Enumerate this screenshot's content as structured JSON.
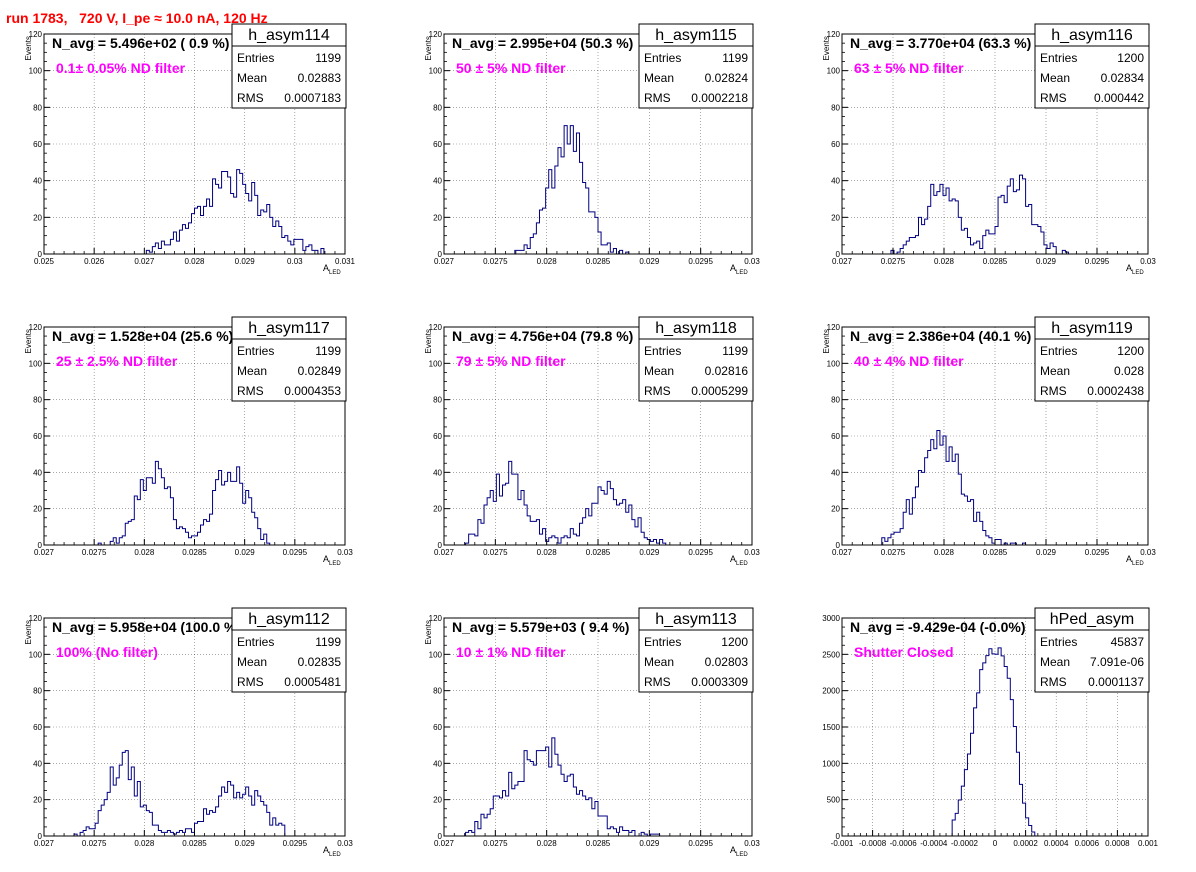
{
  "canvas_title": "run 1783,   720 V, I_pe ≈ 10.0 nA, 120 Hz",
  "colors": {
    "histogram": "#000080",
    "filter_label": "#ff00ff",
    "title": "#ff0000",
    "grid": "#000000"
  },
  "chart_data": [
    {
      "type": "histogram",
      "name": "h_asym114",
      "title": "N_avg = 5.496e+02 ( 0.9 %)",
      "annotation": "0.1± 0.05% ND filter",
      "stats": {
        "Entries": "1199",
        "Mean": "0.02883",
        "RMS": "0.0007183"
      },
      "xlabel": "A_LED",
      "ylabel": "Events",
      "xlim": [
        0.025,
        0.031
      ],
      "ylim": [
        0,
        120
      ],
      "xticks": [
        "0.025",
        "0.026",
        "0.027",
        "0.028",
        "0.029",
        "0.03",
        "0.031"
      ],
      "yticks": [
        "0",
        "20",
        "40",
        "60",
        "80",
        "100",
        "120"
      ],
      "peaks": [
        {
          "mean": 0.02875,
          "sigma": 0.00068,
          "height": 38
        }
      ],
      "x_min": 0.027,
      "x_max": 0.0306,
      "grid": true
    },
    {
      "type": "histogram",
      "name": "h_asym115",
      "title": "N_avg = 2.995e+04 (50.3 %)",
      "annotation": "50 ± 5% ND filter",
      "stats": {
        "Entries": "1199",
        "Mean": "0.02824",
        "RMS": "0.0002218"
      },
      "xlabel": "A_LED",
      "ylabel": "Events",
      "xlim": [
        0.027,
        0.03
      ],
      "ylim": [
        0,
        120
      ],
      "xticks": [
        "0.027",
        "0.0275",
        "0.028",
        "0.0285",
        "0.029",
        "0.0295",
        "0.03"
      ],
      "yticks": [
        "0",
        "20",
        "40",
        "60",
        "80",
        "100",
        "120"
      ],
      "peaks": [
        {
          "mean": 0.02821,
          "sigma": 0.00017,
          "height": 65
        }
      ],
      "x_min": 0.0277,
      "x_max": 0.0289,
      "grid": true
    },
    {
      "type": "histogram",
      "name": "h_asym116",
      "title": "N_avg = 3.770e+04 (63.3 %)",
      "annotation": "63 ± 5% ND filter",
      "stats": {
        "Entries": "1200",
        "Mean": "0.02834",
        "RMS": "0.000442"
      },
      "xlabel": "A_LED",
      "ylabel": "Events",
      "xlim": [
        0.027,
        0.03
      ],
      "ylim": [
        0,
        120
      ],
      "xticks": [
        "0.027",
        "0.0275",
        "0.028",
        "0.0285",
        "0.029",
        "0.0295",
        "0.03"
      ],
      "yticks": [
        "0",
        "20",
        "40",
        "60",
        "80",
        "100",
        "120"
      ],
      "peaks": [
        {
          "mean": 0.02797,
          "sigma": 0.00016,
          "height": 37
        },
        {
          "mean": 0.0287,
          "sigma": 0.00016,
          "height": 40
        }
      ],
      "x_min": 0.0274,
      "x_max": 0.0293,
      "grid": true
    },
    {
      "type": "histogram",
      "name": "h_asym117",
      "title": "N_avg = 1.528e+04 (25.6 %)",
      "annotation": "25 ± 2.5% ND filter",
      "stats": {
        "Entries": "1199",
        "Mean": "0.02849",
        "RMS": "0.0004353"
      },
      "xlabel": "A_LED",
      "ylabel": "Events",
      "xlim": [
        0.027,
        0.03
      ],
      "ylim": [
        0,
        120
      ],
      "xticks": [
        "0.027",
        "0.0275",
        "0.028",
        "0.0285",
        "0.029",
        "0.0295",
        "0.03"
      ],
      "yticks": [
        "0",
        "20",
        "40",
        "60",
        "80",
        "100",
        "120"
      ],
      "peaks": [
        {
          "mean": 0.02809,
          "sigma": 0.00016,
          "height": 40
        },
        {
          "mean": 0.02885,
          "sigma": 0.00017,
          "height": 41
        }
      ],
      "x_min": 0.0275,
      "x_max": 0.0293,
      "grid": true
    },
    {
      "type": "histogram",
      "name": "h_asym118",
      "title": "N_avg = 4.756e+04 (79.8 %)",
      "annotation": "79 ± 5% ND filter",
      "stats": {
        "Entries": "1199",
        "Mean": "0.02816",
        "RMS": "0.0005299"
      },
      "xlabel": "A_LED",
      "ylabel": "Events",
      "xlim": [
        0.027,
        0.03
      ],
      "ylim": [
        0,
        120
      ],
      "xticks": [
        "0.027",
        "0.0275",
        "0.028",
        "0.0285",
        "0.029",
        "0.0295",
        "0.03"
      ],
      "yticks": [
        "0",
        "20",
        "40",
        "60",
        "80",
        "100",
        "120"
      ],
      "peaks": [
        {
          "mean": 0.02763,
          "sigma": 0.00018,
          "height": 38
        },
        {
          "mean": 0.02862,
          "sigma": 0.0002,
          "height": 32
        }
      ],
      "x_min": 0.0272,
      "x_max": 0.0292,
      "grid": true
    },
    {
      "type": "histogram",
      "name": "h_asym119",
      "title": "N_avg = 2.386e+04 (40.1 %)",
      "annotation": "40 ± 4% ND filter",
      "stats": {
        "Entries": "1200",
        "Mean": "0.028",
        "RMS": "0.0002438"
      },
      "xlabel": "A_LED",
      "ylabel": "Events",
      "xlim": [
        0.027,
        0.03
      ],
      "ylim": [
        0,
        120
      ],
      "xticks": [
        "0.027",
        "0.0275",
        "0.028",
        "0.0285",
        "0.029",
        "0.0295",
        "0.03"
      ],
      "yticks": [
        "0",
        "20",
        "40",
        "60",
        "80",
        "100",
        "120"
      ],
      "peaks": [
        {
          "mean": 0.02797,
          "sigma": 0.00022,
          "height": 57
        }
      ],
      "x_min": 0.0274,
      "x_max": 0.0288,
      "grid": true
    },
    {
      "type": "histogram",
      "name": "h_asym112",
      "title": "N_avg = 5.958e+04 (100.0 %)",
      "annotation": "100% (No filter)",
      "stats": {
        "Entries": "1199",
        "Mean": "0.02835",
        "RMS": "0.0005481"
      },
      "xlabel": "A_LED",
      "ylabel": "Events",
      "xlim": [
        0.027,
        0.03
      ],
      "ylim": [
        0,
        120
      ],
      "xticks": [
        "0.027",
        "0.0275",
        "0.028",
        "0.0285",
        "0.029",
        "0.0295",
        "0.03"
      ],
      "yticks": [
        "0",
        "20",
        "40",
        "60",
        "80",
        "100",
        "120"
      ],
      "peaks": [
        {
          "mean": 0.02779,
          "sigma": 0.00016,
          "height": 40
        },
        {
          "mean": 0.02892,
          "sigma": 0.00024,
          "height": 27
        }
      ],
      "x_min": 0.0273,
      "x_max": 0.0294,
      "grid": true
    },
    {
      "type": "histogram",
      "name": "h_asym113",
      "title": "N_avg = 5.579e+03 ( 9.4 %)",
      "annotation": "10 ± 1% ND filter",
      "stats": {
        "Entries": "1200",
        "Mean": "0.02803",
        "RMS": "0.0003309"
      },
      "xlabel": "A_LED",
      "ylabel": "Events",
      "xlim": [
        0.027,
        0.03
      ],
      "ylim": [
        0,
        120
      ],
      "xticks": [
        "0.027",
        "0.0275",
        "0.028",
        "0.0285",
        "0.029",
        "0.0295",
        "0.03"
      ],
      "yticks": [
        "0",
        "20",
        "40",
        "60",
        "80",
        "100",
        "120"
      ],
      "peaks": [
        {
          "mean": 0.02797,
          "sigma": 0.00033,
          "height": 47
        }
      ],
      "x_min": 0.0272,
      "x_max": 0.0291,
      "grid": true
    },
    {
      "type": "histogram",
      "name": "hPed_asym",
      "title": "N_avg = -9.429e-04 (-0.0%)",
      "annotation": "Shutter Closed",
      "stats": {
        "Entries": "45837",
        "Mean": "7.091e-06",
        "RMS": "0.0001137"
      },
      "xlabel": "",
      "ylabel": "",
      "xlim": [
        -0.001,
        0.001
      ],
      "ylim": [
        0,
        3000
      ],
      "xticks": [
        "-0.001",
        "-0.0008",
        "-0.0006",
        "-0.0004",
        "-0.0002",
        "0",
        "0.0002",
        "0.0004",
        "0.0006",
        "0.0008",
        "0.001"
      ],
      "yticks": [
        "0",
        "500",
        "1000",
        "1500",
        "2000",
        "2500",
        "3000"
      ],
      "peaks": [
        {
          "mean": -5e-05,
          "sigma": 0.0001,
          "height": 2400
        },
        {
          "mean": 9e-05,
          "sigma": 6e-05,
          "height": 1300
        }
      ],
      "x_min": -0.00028,
      "x_max": 0.00025,
      "grid": true
    }
  ]
}
